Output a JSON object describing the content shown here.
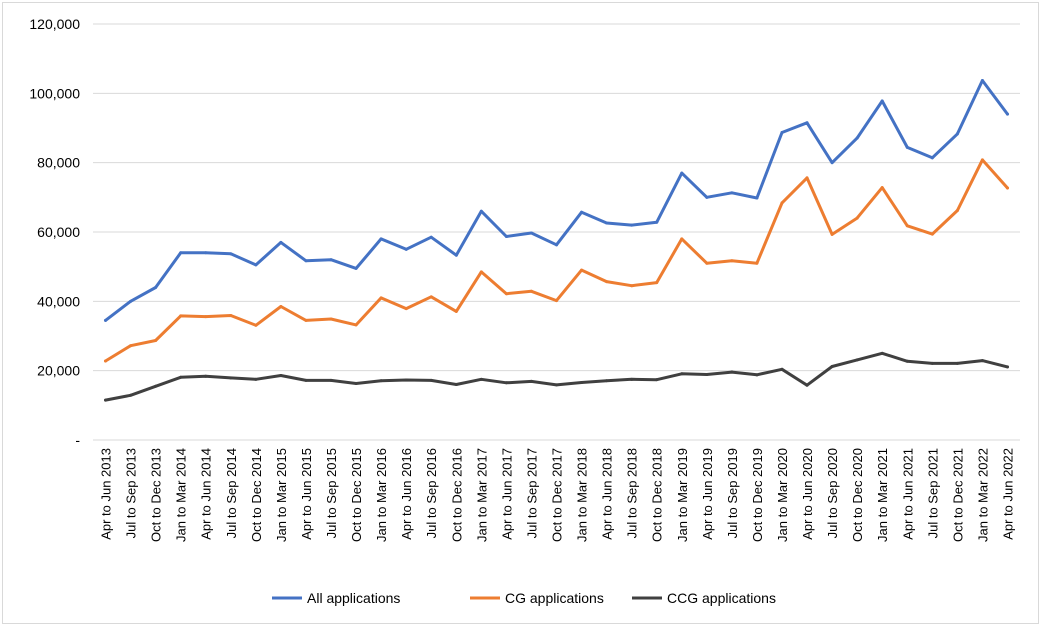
{
  "chart_data": {
    "type": "line",
    "title": "",
    "xlabel": "",
    "ylabel": "",
    "ylim": [
      0,
      120000
    ],
    "yticks": [
      0,
      20000,
      40000,
      60000,
      80000,
      100000,
      120000
    ],
    "ytick_labels": [
      "-",
      "20,000",
      "40,000",
      "60,000",
      "80,000",
      "100,000",
      "120,000"
    ],
    "grid": "horizontal",
    "legend_position": "bottom",
    "categories": [
      "Apr to Jun 2013",
      "Jul to Sep 2013",
      "Oct to Dec 2013",
      "Jan to Mar 2014",
      "Apr to Jun 2014",
      "Jul to Sep 2014",
      "Oct to Dec 2014",
      "Jan to Mar 2015",
      "Apr to Jun 2015",
      "Jul to Sep 2015",
      "Oct to Dec 2015",
      "Jan to Mar 2016",
      "Apr to Jun 2016",
      "Jul to Sep 2016",
      "Oct to Dec 2016",
      "Jan to Mar 2017",
      "Apr to Jun 2017",
      "Jul to Sep 2017",
      "Oct to Dec 2017",
      "Jan to Mar 2018",
      "Apr to Jun 2018",
      "Jul to Sep 2018",
      "Oct to Dec 2018",
      "Jan to Mar 2019",
      "Apr to Jun 2019",
      "Jul to Sep 2019",
      "Oct to Dec 2019",
      "Jan to Mar 2020",
      "Apr to Jun 2020",
      "Jul to Sep 2020",
      "Oct to Dec 2020",
      "Jan to Mar 2021",
      "Apr to Jun 2021",
      "Jul to Sep 2021",
      "Oct to Dec 2021",
      "Jan to Mar 2022",
      "Apr to Jun 2022"
    ],
    "series": [
      {
        "name": "All applications",
        "color": "#4472C4",
        "values": [
          34500,
          40000,
          44000,
          54000,
          54000,
          53700,
          50500,
          57000,
          51700,
          52000,
          49500,
          58000,
          55000,
          58500,
          53300,
          66000,
          58700,
          59700,
          56300,
          65700,
          62600,
          62000,
          62800,
          77000,
          70000,
          71300,
          69800,
          88700,
          91500,
          80000,
          87100,
          97800,
          84400,
          81400,
          88300,
          103700,
          94000
        ]
      },
      {
        "name": "CG applications",
        "color": "#ED7D31",
        "values": [
          22800,
          27200,
          28700,
          35800,
          35600,
          35900,
          33100,
          38500,
          34500,
          34900,
          33200,
          41000,
          37900,
          41300,
          37100,
          48500,
          42200,
          42900,
          40200,
          49000,
          45700,
          44500,
          45400,
          58000,
          51000,
          51700,
          51000,
          68400,
          75600,
          59300,
          64000,
          72800,
          61800,
          59400,
          66200,
          80800,
          72700
        ]
      },
      {
        "name": "CCG applications",
        "color": "#404040",
        "values": [
          11500,
          12900,
          15500,
          18100,
          18400,
          17900,
          17500,
          18600,
          17200,
          17200,
          16300,
          17100,
          17300,
          17200,
          16000,
          17500,
          16500,
          16900,
          15900,
          16600,
          17100,
          17500,
          17400,
          19100,
          18900,
          19600,
          18800,
          20400,
          15800,
          21200,
          23100,
          25000,
          22700,
          22100,
          22100,
          22900,
          21100
        ]
      }
    ]
  }
}
